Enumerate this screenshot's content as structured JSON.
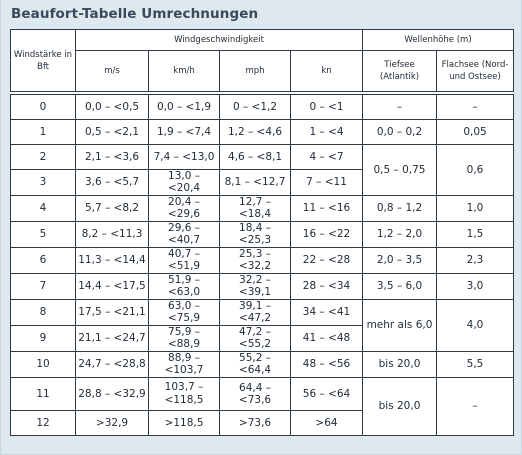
{
  "title": "Beaufort-Tabelle Umrechnungen",
  "headers": {
    "windstaerke": "Windstärke in Bft",
    "windgeschwindigkeit": "Windgeschwindigkeit",
    "wellenhoehe": "Wellenhöhe (m)",
    "ms": "m/s",
    "kmh": "km/h",
    "mph": "mph",
    "kn": "kn",
    "tiefsee": "Tiefsee (Atlantik)",
    "flachsee": "Flachsee (Nord- und Ostsee)"
  },
  "rows": [
    {
      "bft": "0",
      "ms": "0,0 – <0,5",
      "kmh": "0,0 – <1,9",
      "mph": "0 – <1,2",
      "kn": "0 – <1"
    },
    {
      "bft": "1",
      "ms": "0,5 – <2,1",
      "kmh": "1,9 – <7,4",
      "mph": "1,2 – <4,6",
      "kn": "1 – <4"
    },
    {
      "bft": "2",
      "ms": "2,1 – <3,6",
      "kmh": "7,4 – <13,0",
      "mph": "4,6 – <8,1",
      "kn": "4 – <7"
    },
    {
      "bft": "3",
      "ms": "3,6 – <5,7",
      "kmh": "13,0 – <20,4",
      "mph": "8,1 – <12,7",
      "kn": "7 – <11"
    },
    {
      "bft": "4",
      "ms": "5,7 – <8,2",
      "kmh": "20,4 – <29,6",
      "mph": "12,7 – <18,4",
      "kn": "11 – <16"
    },
    {
      "bft": "5",
      "ms": "8,2 – <11,3",
      "kmh": "29,6 – <40,7",
      "mph": "18,4 – <25,3",
      "kn": "16 – <22"
    },
    {
      "bft": "6",
      "ms": "11,3 – <14,4",
      "kmh": "40,7 – <51,9",
      "mph": "25,3 – <32,2",
      "kn": "22 – <28"
    },
    {
      "bft": "7",
      "ms": "14,4 – <17,5",
      "kmh": "51,9 – <63,0",
      "mph": "32,2 – <39,1",
      "kn": "28 – <34"
    },
    {
      "bft": "8",
      "ms": "17,5 – <21,1",
      "kmh": "63,0 – <75,9",
      "mph": "39,1 – <47,2",
      "kn": "34 – <41"
    },
    {
      "bft": "9",
      "ms": "21,1 – <24,7",
      "kmh": "75,9 – <88,9",
      "mph": "47,2 – <55,2",
      "kn": "41 – <48"
    },
    {
      "bft": "10",
      "ms": "24,7 – <28,8",
      "kmh": "88,9 – <103,7",
      "mph": "55,2 – <64,4",
      "kn": "48 – <56"
    },
    {
      "bft": "11",
      "ms": "28,8 – <32,9",
      "kmh": "103,7 – <118,5",
      "mph": "64,4 – <73,6",
      "kn": "56 – <64"
    },
    {
      "bft": "12",
      "ms": ">32,9",
      "kmh": ">118,5",
      "mph": ">73,6",
      "kn": ">64"
    }
  ],
  "waves": {
    "r0_tief": "–",
    "r0_flach": "–",
    "r1_tief": "0,0 – 0,2",
    "r1_flach": "0,05",
    "r23_tief": "0,5 – 0,75",
    "r23_flach": "0,6",
    "r4_tief": "0,8 – 1,2",
    "r4_flach": "1,0",
    "r5_tief": "1,2 – 2,0",
    "r5_flach": "1,5",
    "r6_tief": "2,0 – 3,5",
    "r6_flach": "2,3",
    "r7_tief": "3,5 – 6,0",
    "r7_flach": "3,0",
    "r89_tief": "mehr als 6,0",
    "r89_flach": "4,0",
    "r10_tief": "bis 20,0",
    "r10_flach": "5,5",
    "r1112_tief": "bis 20,0",
    "r1112_flach": "–"
  }
}
